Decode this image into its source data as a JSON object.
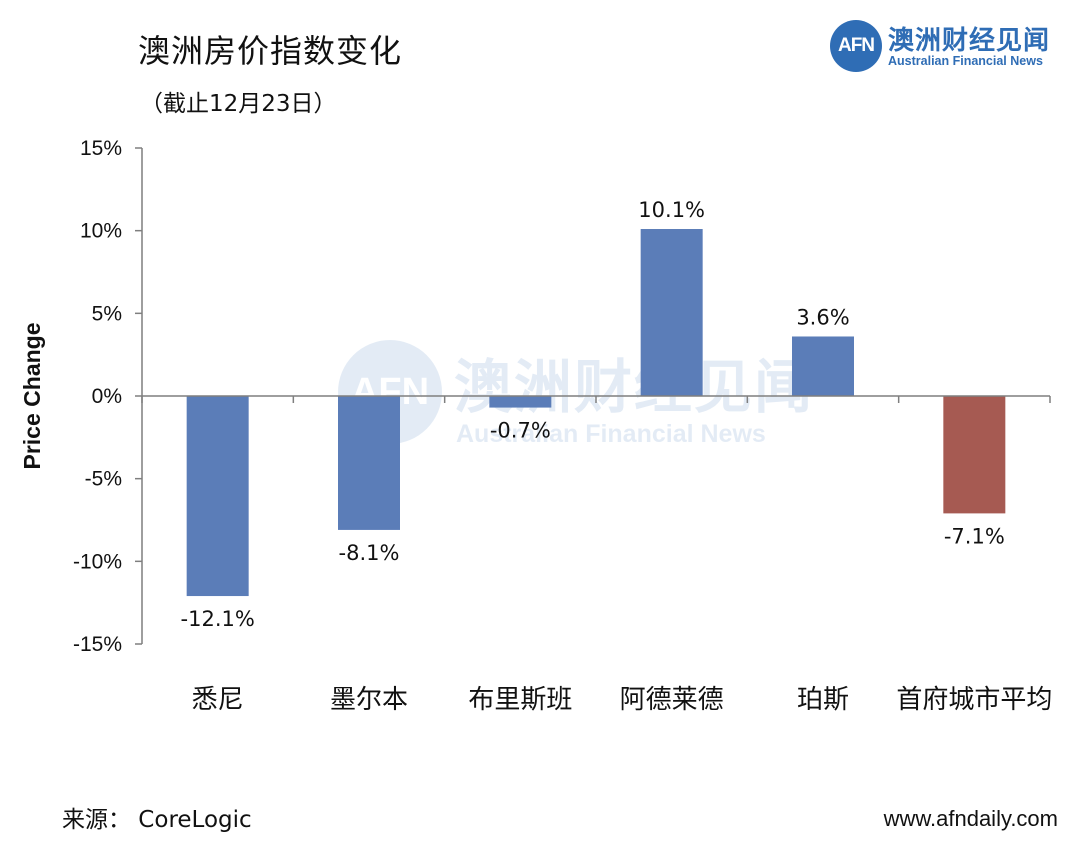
{
  "header": {
    "title": "澳洲房价指数变化",
    "subtitle": "（截止12月23日）"
  },
  "logo": {
    "mark": "AFN",
    "name_cn": "澳洲财经见闻",
    "name_en": "Australian Financial News"
  },
  "footer": {
    "source": "来源：  CoreLogic",
    "website": "www.afndaily.com"
  },
  "colors": {
    "bar_default": "#5b7db8",
    "bar_highlight": "#a65a52",
    "axis": "#7f7f7f",
    "brand": "#2f6db5"
  },
  "chart_data": {
    "type": "bar",
    "title": "澳洲房价指数变化",
    "subtitle": "（截止12月23日）",
    "xlabel": "",
    "ylabel": "Price Change",
    "unit": "%",
    "ylim": [
      -15,
      15
    ],
    "yticks": [
      15,
      10,
      5,
      0,
      -5,
      -10,
      -15
    ],
    "ytick_labels": [
      "15%",
      "10%",
      "5%",
      "0%",
      "-5%",
      "-10%",
      "-15%"
    ],
    "categories": [
      "悉尼",
      "墨尔本",
      "布里斯班",
      "阿德莱德",
      "珀斯",
      "首府城市平均"
    ],
    "values": [
      -12.1,
      -8.1,
      -0.7,
      10.1,
      3.6,
      -7.1
    ],
    "data_labels": [
      "-12.1%",
      "-8.1%",
      "-0.7%",
      "10.1%",
      "3.6%",
      "-7.1%"
    ],
    "highlight_index": 5,
    "grid": false,
    "legend": "none"
  }
}
